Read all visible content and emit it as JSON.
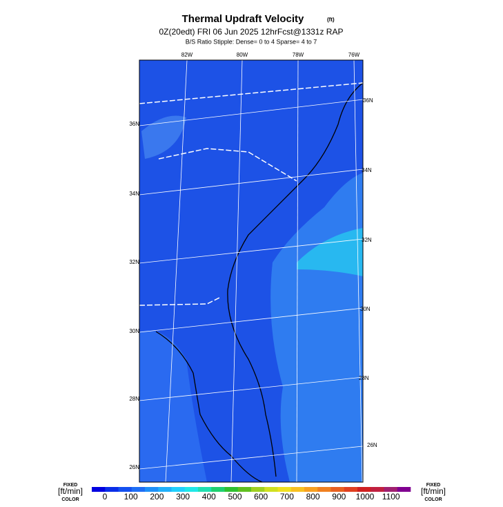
{
  "header": {
    "title": "Thermal Updraft Velocity",
    "title_unit": "(ft)",
    "subtitle": "0Z(20edt) FRI 06 Jun 2025 12hrFcst@1331z RAP",
    "note": "B/S Ratio Stipple:  Dense= 0 to 4  Sparse= 4 to 7"
  },
  "map": {
    "top_labels": [
      "82W",
      "80W",
      "78W",
      "76W"
    ],
    "left_labels": [
      "36N",
      "34N",
      "32N",
      "30N",
      "28N",
      "26N"
    ],
    "right_labels": [
      "36N",
      "34N",
      "32N",
      "30N",
      "28N",
      "26N"
    ]
  },
  "colorbar": {
    "left_caption": [
      "FIXED",
      "[ft/min]",
      "COLOR"
    ],
    "right_caption": [
      "FIXED",
      "[ft/min]",
      "COLOR"
    ],
    "labels": [
      "0",
      "100",
      "200",
      "300",
      "400",
      "500",
      "600",
      "700",
      "800",
      "900",
      "1000",
      "1100"
    ],
    "colors": [
      "#0000e0",
      "#0a2ee8",
      "#1450f0",
      "#1e6ef5",
      "#1e90f8",
      "#20b0fa",
      "#20d0fc",
      "#20e8e8",
      "#20e0b0",
      "#20d070",
      "#30c030",
      "#60c020",
      "#a0d020",
      "#d0e020",
      "#f0e020",
      "#f8c020",
      "#f8a020",
      "#f08020",
      "#e86020",
      "#e04020",
      "#d02020",
      "#c02040",
      "#a02070",
      "#800090"
    ]
  }
}
